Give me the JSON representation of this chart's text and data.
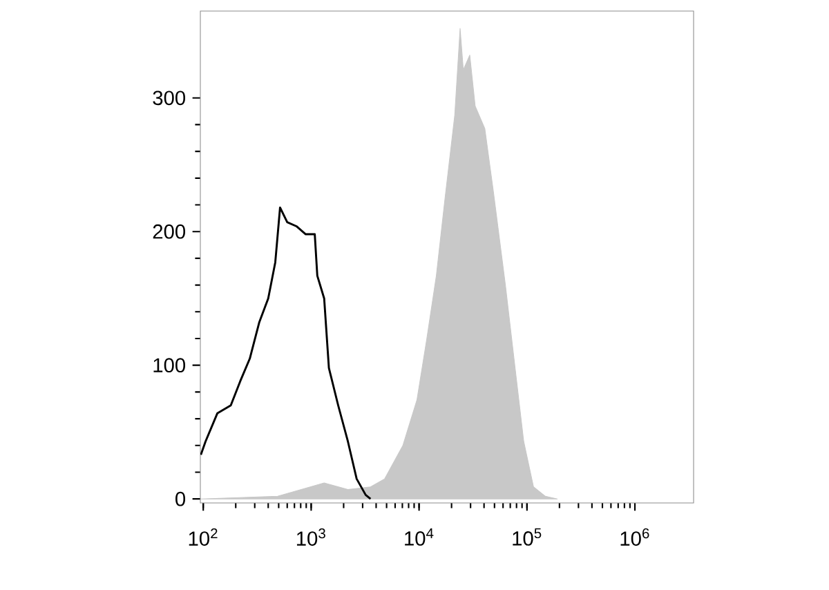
{
  "chart_data": {
    "type": "line",
    "log": "x",
    "grid": false,
    "xlim": [
      94,
      3500000
    ],
    "ylim": [
      -3,
      365
    ],
    "xticks": [
      {
        "value": 100,
        "label": "10$^{2}$"
      },
      {
        "value": 1000,
        "label": "10$^{3}$"
      },
      {
        "value": 10000,
        "label": "10$^{4}$"
      },
      {
        "value": 100000,
        "label": "10$^{5}$"
      },
      {
        "value": 1000000,
        "label": "10$^{6}$"
      }
    ],
    "yticks": [
      0,
      100,
      200,
      300
    ],
    "series": [
      {
        "type": "area",
        "color": "#c8c8c8",
        "x": [
          95,
          490,
          1320,
          2190,
          3550,
          4790,
          7080,
          9550,
          11750,
          14450,
          17400,
          21400,
          24000,
          25700,
          29500,
          33100,
          40700,
          49000,
          63100,
          77600,
          93300,
          115000,
          148000,
          191000
        ],
        "values": [
          0,
          2,
          12,
          7,
          9,
          15,
          40,
          74,
          119,
          167,
          225,
          287,
          352,
          321,
          332,
          294,
          277,
          229,
          160,
          98,
          43,
          9,
          2,
          0
        ]
      },
      {
        "color": "#000000",
        "x": [
          95,
          105,
          135,
          180,
          220,
          270,
          330,
          400,
          465,
          515,
          600,
          730,
          890,
          1080,
          1140,
          1320,
          1460,
          1780,
          2190,
          2640,
          3200,
          3550
        ],
        "values": [
          33,
          43,
          64,
          70,
          88,
          105,
          132,
          150,
          177,
          218,
          207,
          204,
          198,
          198,
          167,
          150,
          98,
          70,
          43,
          15,
          3,
          0
        ]
      }
    ]
  }
}
